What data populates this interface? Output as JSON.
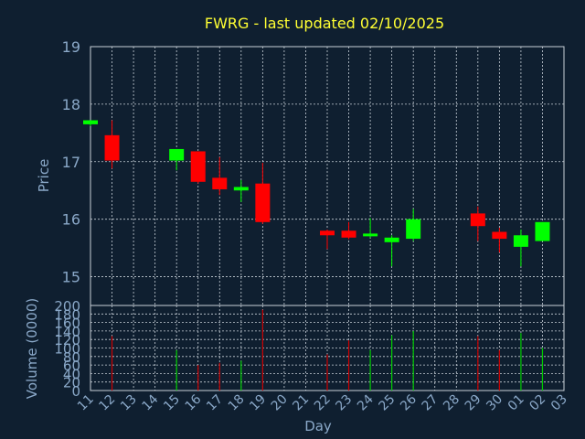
{
  "colors": {
    "background": "#0f1f30",
    "title": "#ffff33",
    "axis_text": "#8aa8c8",
    "grid": "#c8d0d8",
    "frame": "#c8d0d8",
    "up": "#00ff00",
    "down": "#ff0000",
    "volume_up": "#00cc00",
    "volume_down": "#cc0000"
  },
  "chart_data": [
    {
      "type": "candlestick",
      "title": "FWRG - last updated 02/10/2025",
      "ylabel": "Price",
      "ylim": [
        14.5,
        19
      ],
      "yticks": [
        15,
        16,
        17,
        18,
        19
      ],
      "grid": true,
      "candles": [
        {
          "day": "11",
          "open": 17.65,
          "high": 17.72,
          "low": 17.62,
          "close": 17.72,
          "dir": "up"
        },
        {
          "day": "12",
          "open": 17.46,
          "high": 17.72,
          "low": 16.88,
          "close": 17.02,
          "dir": "down"
        },
        {
          "day": "15",
          "open": 17.02,
          "high": 17.22,
          "low": 16.85,
          "close": 17.22,
          "dir": "up"
        },
        {
          "day": "16",
          "open": 17.18,
          "high": 17.18,
          "low": 16.62,
          "close": 16.65,
          "dir": "down"
        },
        {
          "day": "17",
          "open": 16.72,
          "high": 17.08,
          "low": 16.42,
          "close": 16.52,
          "dir": "down"
        },
        {
          "day": "18",
          "open": 16.5,
          "high": 16.68,
          "low": 16.3,
          "close": 16.56,
          "dir": "up"
        },
        {
          "day": "19",
          "open": 16.62,
          "high": 16.98,
          "low": 15.92,
          "close": 15.95,
          "dir": "down"
        },
        {
          "day": "22",
          "open": 15.8,
          "high": 15.82,
          "low": 15.48,
          "close": 15.72,
          "dir": "down"
        },
        {
          "day": "23",
          "open": 15.8,
          "high": 15.95,
          "low": 15.65,
          "close": 15.68,
          "dir": "down"
        },
        {
          "day": "24",
          "open": 15.72,
          "high": 16.02,
          "low": 15.68,
          "close": 15.75,
          "dir": "up"
        },
        {
          "day": "25",
          "open": 15.6,
          "high": 15.72,
          "low": 15.18,
          "close": 15.68,
          "dir": "up"
        },
        {
          "day": "26",
          "open": 15.66,
          "high": 16.18,
          "low": 15.62,
          "close": 16.0,
          "dir": "up"
        },
        {
          "day": "29",
          "open": 16.1,
          "high": 16.22,
          "low": 15.62,
          "close": 15.88,
          "dir": "down"
        },
        {
          "day": "30",
          "open": 15.78,
          "high": 15.85,
          "low": 15.42,
          "close": 15.66,
          "dir": "down"
        },
        {
          "day": "01",
          "open": 15.52,
          "high": 15.82,
          "low": 15.18,
          "close": 15.72,
          "dir": "up"
        },
        {
          "day": "02",
          "open": 15.62,
          "high": 15.95,
          "low": 15.62,
          "close": 15.95,
          "dir": "up"
        }
      ]
    },
    {
      "type": "bar",
      "ylabel": "Volume (0000)",
      "xlabel": "Day",
      "ylim": [
        0,
        200
      ],
      "yticks": [
        0,
        20,
        40,
        60,
        80,
        100,
        120,
        140,
        160,
        180,
        200
      ],
      "x_ticks": [
        "11",
        "12",
        "13",
        "14",
        "15",
        "16",
        "17",
        "18",
        "19",
        "20",
        "21",
        "22",
        "23",
        "24",
        "25",
        "26",
        "27",
        "28",
        "29",
        "30",
        "01",
        "02",
        "03"
      ],
      "grid": true,
      "bars": [
        {
          "day": "11",
          "value": 0,
          "dir": "up"
        },
        {
          "day": "12",
          "value": 128,
          "dir": "down"
        },
        {
          "day": "15",
          "value": 95,
          "dir": "up"
        },
        {
          "day": "16",
          "value": 60,
          "dir": "down"
        },
        {
          "day": "17",
          "value": 65,
          "dir": "down"
        },
        {
          "day": "18",
          "value": 70,
          "dir": "up"
        },
        {
          "day": "19",
          "value": 190,
          "dir": "down"
        },
        {
          "day": "22",
          "value": 85,
          "dir": "down"
        },
        {
          "day": "23",
          "value": 118,
          "dir": "down"
        },
        {
          "day": "24",
          "value": 95,
          "dir": "up"
        },
        {
          "day": "25",
          "value": 130,
          "dir": "up"
        },
        {
          "day": "26",
          "value": 140,
          "dir": "up"
        },
        {
          "day": "29",
          "value": 128,
          "dir": "down"
        },
        {
          "day": "30",
          "value": 95,
          "dir": "down"
        },
        {
          "day": "01",
          "value": 135,
          "dir": "up"
        },
        {
          "day": "02",
          "value": 100,
          "dir": "up"
        }
      ]
    }
  ]
}
